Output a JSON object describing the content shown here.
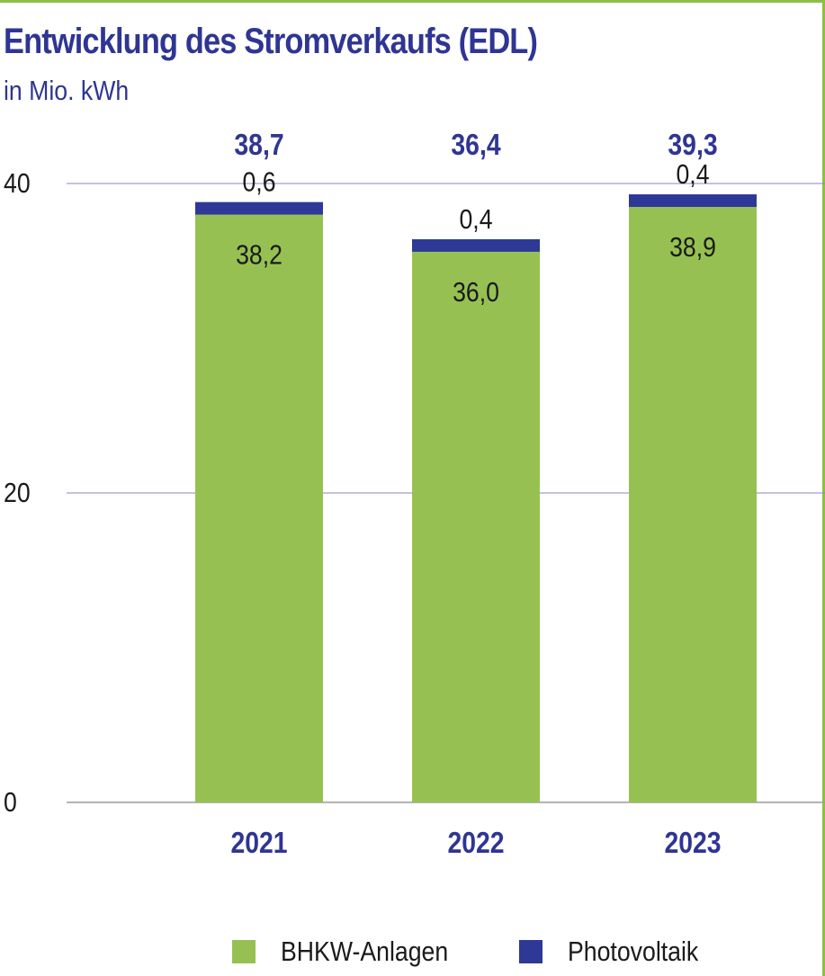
{
  "chart_data": {
    "type": "bar",
    "stacked": true,
    "title": "Entwicklung des Stromverkaufs (EDL)",
    "subtitle": "in Mio. kWh",
    "categories": [
      "2021",
      "2022",
      "2023"
    ],
    "series": [
      {
        "name": "BHKW-Anlagen",
        "color": "#96c152",
        "values": [
          38.2,
          36.0,
          38.9
        ],
        "labels": [
          "38,2",
          "36,0",
          "38,9"
        ]
      },
      {
        "name": "Photovoltaik",
        "color": "#2e3896",
        "values": [
          0.6,
          0.4,
          0.4
        ],
        "labels": [
          "0,6",
          "0,4",
          "0,4"
        ]
      }
    ],
    "totals": [
      "38,7",
      "36,4",
      "39,3"
    ],
    "y_ticks": [
      "0",
      "20",
      "40"
    ],
    "y_tick_values": [
      0,
      20,
      40
    ],
    "ylim": [
      0,
      40
    ],
    "grid": true,
    "legend_position": "bottom",
    "colors": {
      "title": "#2f3593",
      "gridline": "#8587c0",
      "axis": "#9a9a9a"
    }
  }
}
